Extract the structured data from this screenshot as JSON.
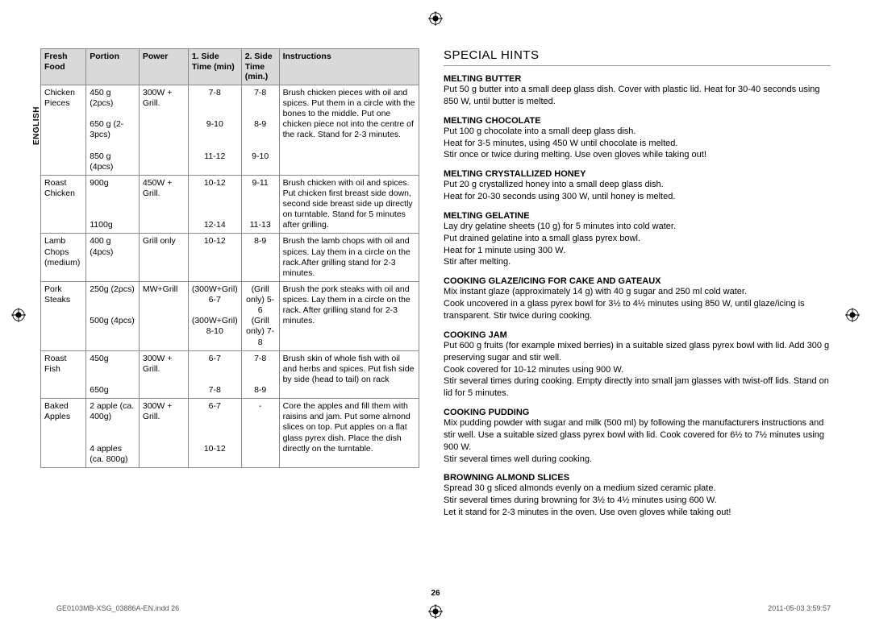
{
  "language_tab": "ENGLISH",
  "page_number": "26",
  "footer_left": "GE0103MB-XSG_03886A-EN.indd   26",
  "footer_right": "2011-05-03   3:59:57",
  "table": {
    "headers": {
      "c0": "Fresh Food",
      "c1": "Portion",
      "c2": "Power",
      "c3": "1. Side Time (min)",
      "c4": "2. Side Time (min.)",
      "c5": "Instructions"
    },
    "rows": [
      {
        "food": "Chicken Pieces",
        "portion": "450 g (2pcs)\n\n650 g (2-3pcs)\n\n850 g (4pcs)",
        "power": "300W + Grill.",
        "side1": "7-8\n\n\n9-10\n\n\n11-12",
        "side2": "7-8\n\n\n8-9\n\n\n9-10",
        "instr": "Brush chicken pieces with oil and spices. Put them in a circle with the bones to the middle. Put one chicken piece not into the centre of the rack. Stand for 2-3 minutes."
      },
      {
        "food": "Roast Chicken",
        "portion": "900g\n\n\n\n1100g",
        "power": "450W + Grill.",
        "side1": "10-12\n\n\n\n12-14",
        "side2": "9-11\n\n\n\n11-13",
        "instr": "Brush chicken with oil and spices. Put chicken first breast side down, second side breast side up directly on turntable. Stand for 5 minutes after grilling."
      },
      {
        "food": "Lamb Chops (medium)",
        "portion": "400 g (4pcs)",
        "power": "Grill only",
        "side1": "10-12",
        "side2": "8-9",
        "instr": "Brush the lamb chops with oil and spices. Lay them in a circle on the rack.After grilling stand for 2-3 minutes."
      },
      {
        "food": "Pork Steaks",
        "portion": "250g (2pcs)\n\n\n500g (4pcs)",
        "power": "MW+Grill",
        "side1": "(300W+Gril) 6-7\n\n(300W+Gril) 8-10",
        "side2": "(Grill only) 5-6\n(Grill only) 7-8",
        "instr": "Brush the pork steaks with oil and spices. Lay them in a circle on the rack. After grilling stand for 2-3 minutes."
      },
      {
        "food": "Roast Fish",
        "portion": "450g\n\n\n650g",
        "power": "300W + Grill.",
        "side1": "6-7\n\n\n7-8",
        "side2": "7-8\n\n\n8-9",
        "instr": "Brush skin of whole fish with oil and herbs and spices. Put fish side by side (head to tail) on rack"
      },
      {
        "food": "Baked Apples",
        "portion": "2 apple (ca. 400g)\n\n\n4 apples (ca. 800g)",
        "power": "300W + Grill.",
        "side1": "6-7\n\n\n\n10-12",
        "side2": "-",
        "instr": "Core the apples and fill them with raisins and jam. Put some almond slices on top. Put apples on a flat glass pyrex dish. Place the dish directly on the turntable."
      }
    ]
  },
  "hints": {
    "title": "SPECIAL HINTS",
    "items": [
      {
        "h": "MELTING BUTTER",
        "b": "Put 50 g butter into a small deep glass dish. Cover with plastic lid. Heat for 30-40 seconds using 850 W, until butter is melted."
      },
      {
        "h": "MELTING CHOCOLATE",
        "b": "Put 100 g chocolate into a small deep glass dish.\nHeat for 3-5 minutes, using 450 W until chocolate is melted.\nStir once or twice during melting. Use oven gloves while taking out!"
      },
      {
        "h": "MELTING CRYSTALLIZED HONEY",
        "b": "Put 20 g crystallized honey into a small deep glass dish.\nHeat for 20-30 seconds using 300 W, until honey is melted."
      },
      {
        "h": "MELTING GELATINE",
        "b": "Lay dry gelatine sheets (10 g) for 5 minutes into cold water.\nPut drained gelatine into a small glass pyrex bowl.\nHeat for 1 minute using 300 W.\nStir after melting."
      },
      {
        "h": "COOKING GLAZE/ICING FOR CAKE AND GATEAUX",
        "b": "Mix instant glaze (approximately 14 g) with 40 g sugar and 250 ml cold water.\nCook uncovered in a glass pyrex bowl for 3½ to 4½ minutes using 850 W, until glaze/icing is transparent. Stir twice during cooking."
      },
      {
        "h": "COOKING JAM",
        "b": "Put 600 g fruits (for example mixed berries) in a suitable sized glass pyrex bowl with lid. Add 300 g preserving sugar and stir well.\nCook covered for 10-12 minutes using 900 W.\nStir several times during cooking. Empty directly into small jam glasses with twist-off lids. Stand on lid for 5 minutes."
      },
      {
        "h": "COOKING PUDDING",
        "b": "Mix pudding powder with sugar and milk (500 ml) by following the manufacturers instructions and stir well. Use a suitable sized glass pyrex bowl with lid. Cook covered for 6½ to 7½ minutes using 900 W.\nStir several times well during cooking."
      },
      {
        "h": "BROWNING ALMOND SLICES",
        "b": "Spread 30 g sliced almonds evenly on a medium sized ceramic plate.\nStir several times during browning for 3½ to 4½ minutes using 600 W.\nLet it stand for 2-3 minutes in the oven. Use oven gloves while taking out!"
      }
    ]
  }
}
